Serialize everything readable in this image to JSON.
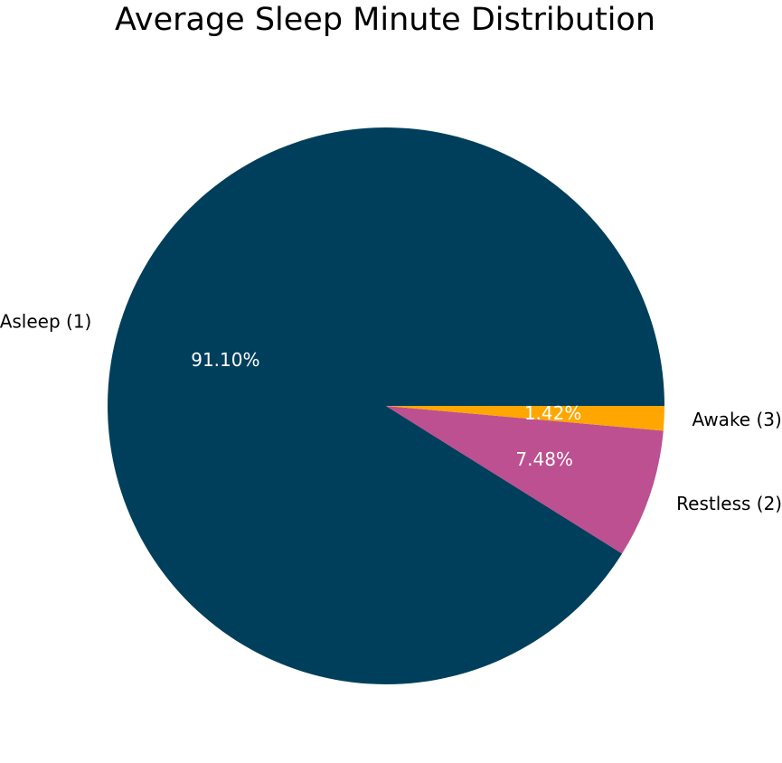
{
  "chart_data": {
    "type": "pie",
    "title": "Average Sleep Minute Distribution",
    "slices": [
      {
        "label": "Asleep (1)",
        "value": 91.1,
        "pct_label": "91.10%",
        "color": "#003f5c"
      },
      {
        "label": "Restless (2)",
        "value": 7.48,
        "pct_label": "7.48%",
        "color": "#bc5090"
      },
      {
        "label": "Awake (3)",
        "value": 1.42,
        "pct_label": "1.42%",
        "color": "#ffa600"
      }
    ],
    "start_angle_deg": 0,
    "direction": "counterclockwise",
    "pct_label_color": "#ffffff",
    "category_label_color": "#000000"
  }
}
